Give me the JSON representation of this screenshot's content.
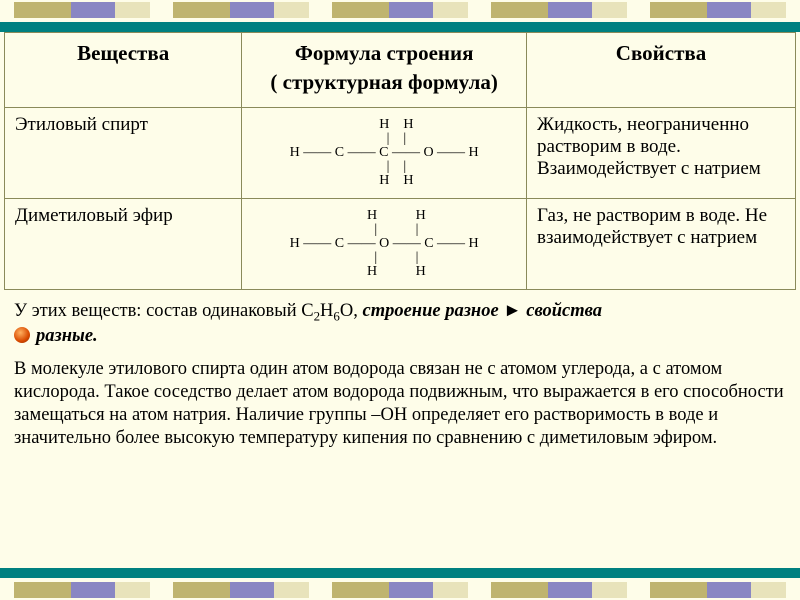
{
  "decor": {
    "bar_colors": {
      "a": "#bfb46f",
      "b": "#8a87c3",
      "c": "#e8e3bb"
    },
    "band_color": "#008080",
    "background": "#fefde9"
  },
  "table": {
    "headers": {
      "substances": "Вещества",
      "formula_line1": "Формула строения",
      "formula_line2": "( структурная формула)",
      "properties": "Свойства"
    },
    "rows": [
      {
        "name": "Этиловый спирт",
        "formula": "       H    H\n       |    |\nH —— C —— C —— O —— H\n       |    |\n       H    H",
        "props": "Жидкость, неограниченно растворим в воде. Взаимодействует с натрием"
      },
      {
        "name": "Диметиловый эфир",
        "formula": "       H           H\n       |           |\nH —— C —— O —— C —— H\n       |           |\n       H           H",
        "props": "Газ, не растворим в воде. Не взаимодействует с натрием"
      }
    ]
  },
  "summary": {
    "prefix": "У этих веществ: состав одинаковый C",
    "sub1": "2",
    "mid1": "H",
    "sub2": "6",
    "mid2": "O, ",
    "em1": "строение разное",
    "arrow": "  ►  ",
    "em2": "свойства",
    "line2_em": "разные."
  },
  "paragraph": "В молекуле этилового спирта один атом водорода связан не с атомом углерода, а с атомом кислорода. Такое соседство делает атом водорода подвижным, что выражается в его способности замещаться на атом натрия. Наличие группы –ОН определяет его растворимость в воде и значительно более высокую температуру кипения по сравнению с диметиловым эфиром."
}
